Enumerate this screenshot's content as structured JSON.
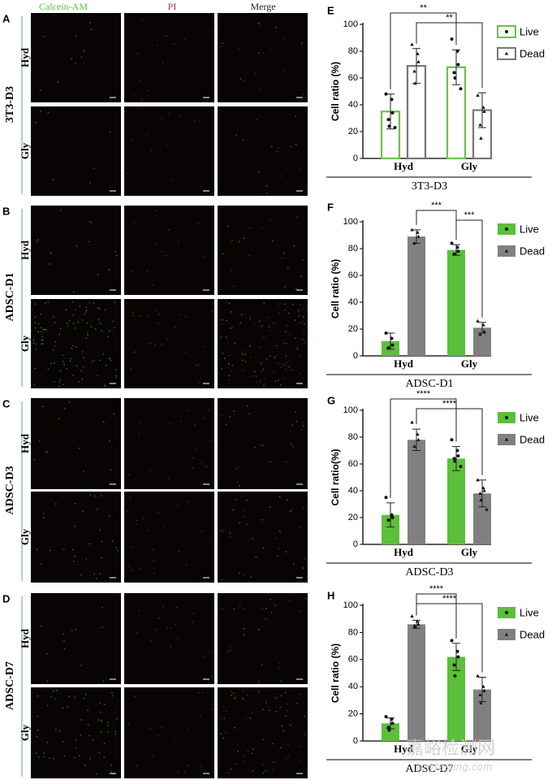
{
  "colors": {
    "live_fill": "#5bbf3a",
    "live_outline": "#6cc24a",
    "dead_fill": "#808080",
    "dead_outline": "#777777",
    "calcein_text": "#5bbf3a",
    "pi_text": "#b33a3a",
    "rowline": "#7fb6d6"
  },
  "micrographs": {
    "channel_headers": [
      "Calcein-AM",
      "PI",
      "Merge"
    ],
    "rows": [
      {
        "letter": "A",
        "label": "3T3-D3",
        "groups": [
          "Hyd",
          "Gly"
        ],
        "density": [
          [
            0.08,
            0.12,
            0.15
          ],
          [
            0.06,
            0.1,
            0.12
          ]
        ]
      },
      {
        "letter": "B",
        "label": "ADSC-D1",
        "groups": [
          "Hyd",
          "Gly"
        ],
        "density": [
          [
            0.12,
            0.1,
            0.18
          ],
          [
            0.9,
            0.2,
            0.9
          ]
        ]
      },
      {
        "letter": "C",
        "label": "ADSC-D3",
        "groups": [
          "Hyd",
          "Gly"
        ],
        "density": [
          [
            0.12,
            0.15,
            0.2
          ],
          [
            0.25,
            0.18,
            0.3
          ]
        ]
      },
      {
        "letter": "D",
        "label": "ADSC-D7",
        "groups": [
          "Hyd",
          "Gly"
        ],
        "density": [
          [
            0.1,
            0.15,
            0.2
          ],
          [
            0.5,
            0.15,
            0.55
          ]
        ]
      }
    ]
  },
  "chart_data": [
    {
      "panel": "E",
      "type": "bar",
      "style": "outline",
      "ylabel": "Cell ratio (%)",
      "xlabel": "3T3-D3",
      "categories": [
        "Hyd",
        "Gly"
      ],
      "ylim": [
        0,
        100
      ],
      "yticks": [
        0,
        20,
        40,
        60,
        80,
        100
      ],
      "grid": false,
      "legend": "top-right",
      "series": [
        {
          "name": "Live",
          "values": [
            35,
            68
          ],
          "err": [
            13,
            13
          ],
          "points": [
            [
              48,
              44,
              34,
              29,
              24,
              23
            ],
            [
              89,
              80,
              70,
              64,
              60,
              52
            ]
          ]
        },
        {
          "name": "Dead",
          "values": [
            69,
            36
          ],
          "err": [
            13,
            13
          ],
          "points": [
            [
              85,
              78,
              72,
              65,
              56
            ],
            [
              47,
              38,
              35,
              25,
              15
            ]
          ]
        }
      ],
      "significance": [
        {
          "from": [
            0,
            0
          ],
          "to": [
            1,
            0
          ],
          "label": "**"
        },
        {
          "from": [
            0,
            1
          ],
          "to": [
            1,
            1
          ],
          "label": "**"
        }
      ]
    },
    {
      "panel": "F",
      "type": "bar",
      "style": "filled",
      "ylabel": "Cell ratio (%)",
      "xlabel": "ADSC-D1",
      "categories": [
        "Hyd",
        "Gly"
      ],
      "ylim": [
        0,
        100
      ],
      "yticks": [
        0,
        20,
        40,
        60,
        80,
        100
      ],
      "grid": false,
      "legend": "top-right",
      "series": [
        {
          "name": "Live",
          "values": [
            11,
            79
          ],
          "err": [
            6,
            4
          ],
          "points": [
            [
              17,
              13,
              8,
              6
            ],
            [
              84,
              81,
              78,
              76
            ]
          ]
        },
        {
          "name": "Dead",
          "values": [
            89,
            21
          ],
          "err": [
            5,
            4
          ],
          "points": [
            [
              94,
              92,
              89,
              84
            ],
            [
              26,
              23,
              18,
              16
            ]
          ]
        }
      ],
      "significance": [
        {
          "from": [
            0,
            1
          ],
          "to": [
            1,
            0
          ],
          "label": "***"
        },
        {
          "from": [
            1,
            0
          ],
          "to": [
            1,
            1
          ],
          "label": "***"
        }
      ]
    },
    {
      "panel": "G",
      "type": "bar",
      "style": "filled",
      "ylabel": "Cell ratio(%)",
      "xlabel": "ADSC-D3",
      "categories": [
        "Hyd",
        "Gly"
      ],
      "ylim": [
        0,
        100
      ],
      "yticks": [
        0,
        20,
        40,
        60,
        80,
        100
      ],
      "grid": false,
      "legend": "top-right",
      "series": [
        {
          "name": "Live",
          "values": [
            22,
            64
          ],
          "err": [
            9,
            9
          ],
          "points": [
            [
              35,
              22,
              20,
              18
            ],
            [
              78,
              70,
              66,
              64,
              62,
              58
            ]
          ]
        },
        {
          "name": "Dead",
          "values": [
            78,
            38
          ],
          "err": [
            8,
            10
          ],
          "points": [
            [
              91,
              82,
              78,
              73
            ],
            [
              48,
              42,
              40,
              38,
              33,
              26
            ]
          ]
        }
      ],
      "significance": [
        {
          "from": [
            0,
            0
          ],
          "to": [
            1,
            0
          ],
          "label": "****"
        },
        {
          "from": [
            0,
            1
          ],
          "to": [
            1,
            1
          ],
          "label": "****"
        }
      ]
    },
    {
      "panel": "H",
      "type": "bar",
      "style": "filled",
      "ylabel": "Cell ratio (%)",
      "xlabel": "ADSC-D7",
      "categories": [
        "Hyd",
        "Gly"
      ],
      "ylim": [
        0,
        100
      ],
      "yticks": [
        0,
        20,
        40,
        60,
        80,
        100
      ],
      "grid": false,
      "legend": "top-right",
      "series": [
        {
          "name": "Live",
          "values": [
            13,
            62
          ],
          "err": [
            4,
            10
          ],
          "points": [
            [
              18,
              16,
              13,
              10,
              8
            ],
            [
              74,
              66,
              62,
              56,
              48
            ]
          ]
        },
        {
          "name": "Dead",
          "values": [
            86,
            38
          ],
          "err": [
            3,
            9
          ],
          "points": [
            [
              92,
              88,
              86,
              85,
              84
            ],
            [
              48,
              40,
              37,
              34,
              28
            ]
          ]
        }
      ],
      "significance": [
        {
          "from": [
            0,
            1
          ],
          "to": [
            1,
            0
          ],
          "label": "****"
        },
        {
          "from": [
            0,
            1
          ],
          "to": [
            1,
            1
          ],
          "label": "****"
        }
      ]
    }
  ],
  "watermark": {
    "text": "嘉峪检测网",
    "subtext": "anytesting.com"
  }
}
